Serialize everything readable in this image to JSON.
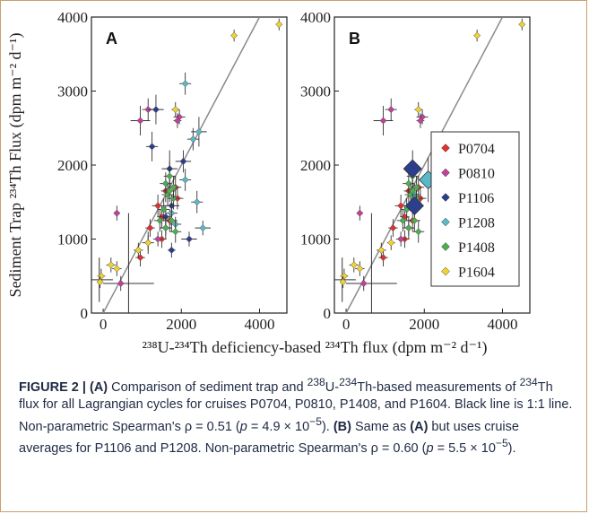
{
  "figure": {
    "caption_label": "FIGURE 2 | ",
    "caption_parts": [
      {
        "t": "b",
        "v": "(A)"
      },
      {
        "t": "n",
        "v": " Comparison of sediment trap and "
      },
      {
        "t": "sup",
        "v": "238"
      },
      {
        "t": "n",
        "v": "U-"
      },
      {
        "t": "sup",
        "v": "234"
      },
      {
        "t": "n",
        "v": "Th-based measurements of "
      },
      {
        "t": "sup",
        "v": "234"
      },
      {
        "t": "n",
        "v": "Th flux for all Lagrangian cycles for cruises P0704, P0810, P1408, and P1604. Black line is 1:1 line. Non-parametric Spearman's ρ = 0.51 ("
      },
      {
        "t": "i",
        "v": "p"
      },
      {
        "t": "n",
        "v": " = 4.9 × 10"
      },
      {
        "t": "sup",
        "v": "−5"
      },
      {
        "t": "n",
        "v": "). "
      },
      {
        "t": "b",
        "v": "(B)"
      },
      {
        "t": "n",
        "v": " Same as "
      },
      {
        "t": "b",
        "v": "(A)"
      },
      {
        "t": "n",
        "v": " but uses cruise averages for P1106 and P1208. Non-parametric Spearman's ρ = 0.60 ("
      },
      {
        "t": "i",
        "v": "p"
      },
      {
        "t": "n",
        "v": " = 5.5 × 10"
      },
      {
        "t": "sup",
        "v": "−5"
      },
      {
        "t": "n",
        "v": ")."
      }
    ]
  },
  "chart_data": [
    {
      "panel": "A",
      "type": "scatter",
      "x_ticks": [
        "0",
        "2000",
        "4000"
      ],
      "y_ticks": [
        "0",
        "1000",
        "2000",
        "3000",
        "4000"
      ],
      "xlim": [
        -300,
        4700
      ],
      "ylim": [
        0,
        4000
      ],
      "one_to_one_line": true,
      "series": [
        {
          "name": "P0704",
          "color": "#e0312f",
          "points": [
            [
              1400,
              1450,
              150,
              150
            ],
            [
              1600,
              1650,
              120,
              150
            ],
            [
              1850,
              1700,
              150,
              150
            ],
            [
              1900,
              1550,
              150,
              150
            ],
            [
              1500,
              1300,
              120,
              150
            ],
            [
              950,
              750,
              120,
              120
            ],
            [
              1200,
              1150,
              120,
              120
            ],
            [
              1700,
              1250,
              150,
              150
            ],
            [
              1500,
              1000,
              120,
              120
            ]
          ]
        },
        {
          "name": "P0810",
          "color": "#c0409a",
          "points": [
            [
              950,
              2600,
              250,
              200
            ],
            [
              1150,
              2750,
              150,
              150
            ],
            [
              1950,
              2650,
              150,
              100
            ],
            [
              1900,
              2600,
              100,
              100
            ],
            [
              350,
              1350,
              80,
              100
            ],
            [
              450,
              400,
              100,
              100
            ],
            [
              1400,
              1000,
              120,
              100
            ],
            [
              1600,
              1150,
              150,
              100
            ]
          ]
        },
        {
          "name": "P1106",
          "color": "#2b3f8c",
          "points": [
            [
              1700,
              1950,
              200,
              250
            ],
            [
              1250,
              2250,
              150,
              200
            ],
            [
              1750,
              1450,
              200,
              150
            ],
            [
              1350,
              2750,
              200,
              200
            ],
            [
              2050,
              2050,
              200,
              150
            ],
            [
              1600,
              1300,
              150,
              150
            ],
            [
              2200,
              1000,
              200,
              100
            ],
            [
              1750,
              850,
              100,
              100
            ]
          ]
        },
        {
          "name": "P1208",
          "color": "#5ab8c8",
          "points": [
            [
              2100,
              3100,
              150,
              150
            ],
            [
              2450,
              2450,
              200,
              200
            ],
            [
              2300,
              2350,
              150,
              150
            ],
            [
              2100,
              1800,
              150,
              150
            ],
            [
              2400,
              1500,
              150,
              150
            ],
            [
              2550,
              1150,
              200,
              100
            ],
            [
              1150,
              950,
              150,
              150
            ],
            [
              1750,
              1350,
              150,
              150
            ],
            [
              1850,
              1200,
              150,
              100
            ]
          ]
        },
        {
          "name": "P1408",
          "color": "#4caf50",
          "points": [
            [
              1700,
              1850,
              150,
              200
            ],
            [
              1600,
              1750,
              150,
              150
            ],
            [
              1800,
              1550,
              150,
              150
            ],
            [
              1650,
              1600,
              150,
              150
            ],
            [
              1550,
              1400,
              150,
              150
            ],
            [
              1750,
              1250,
              150,
              150
            ],
            [
              1600,
              1150,
              150,
              150
            ],
            [
              1850,
              1100,
              150,
              150
            ],
            [
              1450,
              1250,
              150,
              150
            ],
            [
              1700,
              1650,
              150,
              150
            ],
            [
              1800,
              1700,
              150,
              150
            ]
          ]
        },
        {
          "name": "P1604",
          "color": "#f2d22e",
          "points": [
            [
              3350,
              3750,
              80,
              80
            ],
            [
              4500,
              3900,
              80,
              80
            ],
            [
              1850,
              2750,
              100,
              100
            ],
            [
              200,
              650,
              120,
              100
            ],
            [
              350,
              600,
              120,
              100
            ],
            [
              -50,
              500,
              100,
              100
            ],
            [
              -80,
              420,
              80,
              80
            ],
            [
              900,
              850,
              120,
              100
            ],
            [
              1150,
              950,
              100,
              100
            ]
          ]
        }
      ]
    },
    {
      "panel": "B",
      "type": "scatter",
      "x_ticks": [
        "0",
        "2000",
        "4000"
      ],
      "y_ticks": [
        "0",
        "1000",
        "2000",
        "3000",
        "4000"
      ],
      "xlim": [
        -300,
        4700
      ],
      "ylim": [
        0,
        4000
      ],
      "one_to_one_line": true,
      "legend": [
        "P0704",
        "P0810",
        "P1106",
        "P1208",
        "P1408",
        "P1604"
      ],
      "series": [
        {
          "name": "P0704",
          "color": "#e0312f",
          "points": [
            [
              1400,
              1450,
              150,
              150
            ],
            [
              1600,
              1650,
              120,
              150
            ],
            [
              1850,
              1700,
              150,
              150
            ],
            [
              1900,
              1550,
              150,
              150
            ],
            [
              1500,
              1300,
              120,
              150
            ],
            [
              950,
              750,
              120,
              120
            ],
            [
              1200,
              1150,
              120,
              120
            ],
            [
              1700,
              1250,
              150,
              150
            ],
            [
              1500,
              1000,
              120,
              120
            ]
          ]
        },
        {
          "name": "P0810",
          "color": "#c0409a",
          "points": [
            [
              950,
              2600,
              250,
              200
            ],
            [
              1150,
              2750,
              150,
              150
            ],
            [
              1950,
              2650,
              150,
              100
            ],
            [
              1900,
              2600,
              100,
              100
            ],
            [
              350,
              1350,
              80,
              100
            ],
            [
              450,
              400,
              100,
              100
            ],
            [
              1400,
              1000,
              120,
              100
            ],
            [
              1600,
              1150,
              150,
              100
            ]
          ]
        },
        {
          "name": "P1106",
          "color": "#2b3f8c",
          "points": [
            [
              1700,
              1950,
              200,
              250
            ],
            [
              1750,
              1450,
              200,
              150
            ]
          ]
        },
        {
          "name": "P1208",
          "color": "#5ab8c8",
          "points": [
            [
              2100,
              1800,
              250,
              300
            ],
            [
              1750,
              1600,
              150,
              150
            ]
          ]
        },
        {
          "name": "P1408",
          "color": "#4caf50",
          "points": [
            [
              1700,
              1850,
              150,
              200
            ],
            [
              1600,
              1750,
              150,
              150
            ],
            [
              1800,
              1550,
              150,
              150
            ],
            [
              1650,
              1600,
              150,
              150
            ],
            [
              1550,
              1400,
              150,
              150
            ],
            [
              1750,
              1250,
              150,
              150
            ],
            [
              1600,
              1150,
              150,
              150
            ],
            [
              1850,
              1100,
              150,
              150
            ],
            [
              1450,
              1250,
              150,
              150
            ],
            [
              1700,
              1650,
              150,
              150
            ],
            [
              1800,
              1700,
              150,
              150
            ]
          ]
        },
        {
          "name": "P1604",
          "color": "#f2d22e",
          "points": [
            [
              3350,
              3750,
              80,
              80
            ],
            [
              4500,
              3900,
              80,
              80
            ],
            [
              1850,
              2750,
              100,
              100
            ],
            [
              200,
              650,
              120,
              100
            ],
            [
              350,
              600,
              120,
              100
            ],
            [
              -50,
              500,
              100,
              100
            ],
            [
              -80,
              420,
              80,
              80
            ],
            [
              900,
              850,
              120,
              100
            ],
            [
              1150,
              950,
              100,
              100
            ]
          ]
        }
      ]
    }
  ],
  "axes": {
    "ylabel": "Sediment Trap ²³⁴Th Flux (dpm m⁻² d⁻¹)",
    "xlabel": "²³⁸U-²³⁴Th deficiency-based ²³⁴Th flux (dpm m⁻² d⁻¹)"
  },
  "crosses": {
    "A": [
      [
        650,
        400,
        650,
        950
      ],
      [
        -100,
        450,
        350,
        300
      ]
    ],
    "B": [
      [
        650,
        400,
        650,
        950
      ],
      [
        -100,
        450,
        350,
        300
      ]
    ]
  },
  "big_markers": {
    "B": [
      [
        "P1106",
        1700,
        1950
      ],
      [
        "P1208",
        2100,
        1800
      ],
      [
        "P1106",
        1750,
        1450
      ]
    ]
  }
}
